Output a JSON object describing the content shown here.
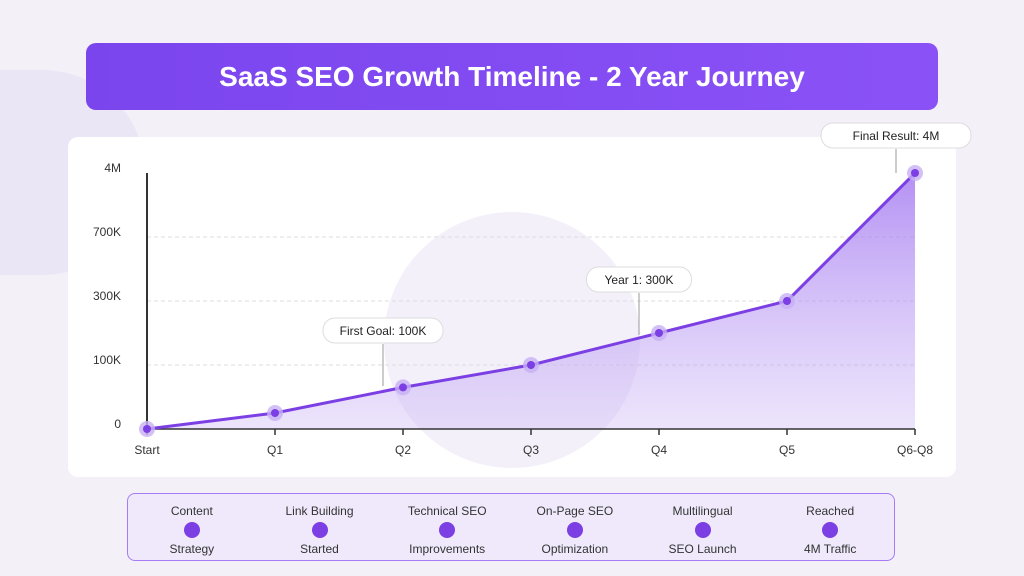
{
  "title": "SaaS SEO Growth Timeline - 2 Year Journey",
  "chart_data": {
    "type": "area",
    "categories": [
      "Start",
      "Q1",
      "Q2",
      "Q3",
      "Q4",
      "Q5",
      "Q6-Q8"
    ],
    "values": [
      0,
      25000,
      65000,
      100000,
      200000,
      300000,
      4000000
    ],
    "y_ticks": [
      {
        "value": 0,
        "label": "0"
      },
      {
        "value": 100000,
        "label": "100K"
      },
      {
        "value": 300000,
        "label": "300K"
      },
      {
        "value": 700000,
        "label": "700K"
      },
      {
        "value": 4000000,
        "label": "4M"
      }
    ],
    "y_scale": "non-linear (evenly spaced ticks)",
    "grid": "dashed horizontal",
    "line_color": "#7b3fe4",
    "annotations": [
      {
        "text": "First Goal: 100K",
        "near": "Q2"
      },
      {
        "text": "Year 1: 300K",
        "near": "Q4"
      },
      {
        "text": "Final Result: 4M",
        "near": "Q6-Q8"
      }
    ]
  },
  "legend": [
    {
      "top": "Content",
      "bottom": "Strategy"
    },
    {
      "top": "Link Building",
      "bottom": "Started"
    },
    {
      "top": "Technical SEO",
      "bottom": "Improvements"
    },
    {
      "top": "On-Page SEO",
      "bottom": "Optimization"
    },
    {
      "top": "Multilingual",
      "bottom": "SEO Launch"
    },
    {
      "top": "Reached",
      "bottom": "4M Traffic"
    }
  ]
}
